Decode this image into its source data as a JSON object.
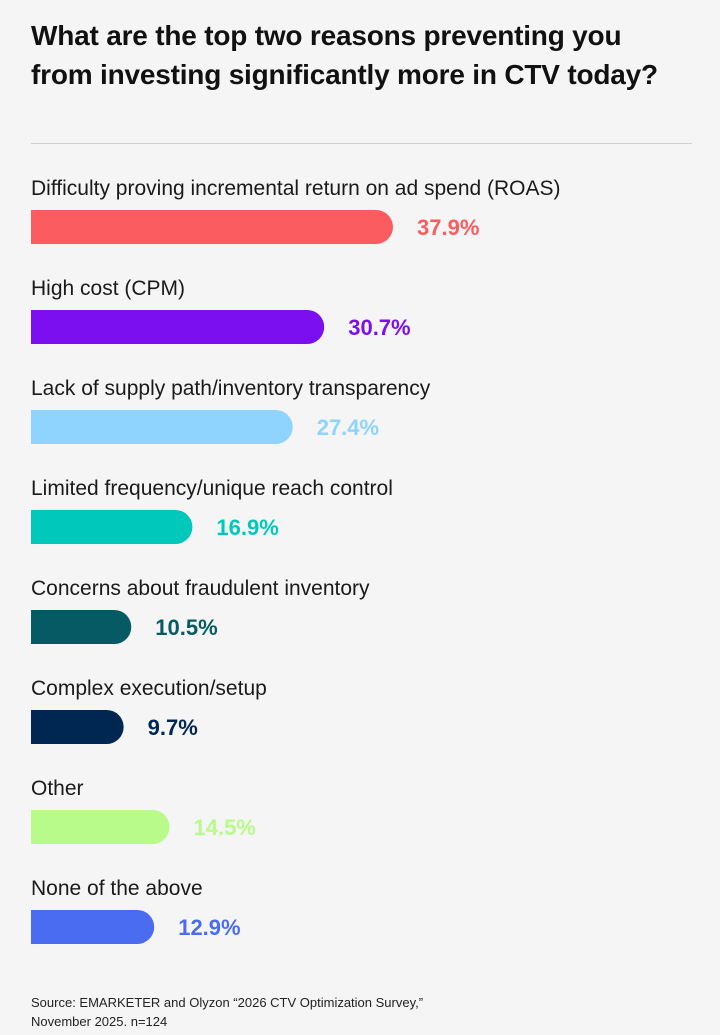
{
  "title": "What are the top two reasons preventing you from investing significantly more in CTV today?",
  "source_line1": "Source: EMARKETER and Olyzon “2026 CTV Optimization Survey,”",
  "source_line2": "November 2025. n=124",
  "chart_data": {
    "type": "bar",
    "orientation": "horizontal",
    "title": "What are the top two reasons preventing you from investing significantly more in CTV today?",
    "xlabel": "",
    "ylabel": "",
    "unit": "%",
    "categories": [
      "Difficulty proving incremental return on ad spend (ROAS)",
      "High cost (CPM)",
      "Lack of supply path/inventory transparency",
      "Limited frequency/unique reach control",
      "Concerns about fraudulent inventory",
      "Complex execution/setup",
      "Other",
      "None of the above"
    ],
    "values": [
      37.9,
      30.7,
      27.4,
      16.9,
      10.5,
      9.7,
      14.5,
      12.9
    ],
    "value_labels": [
      "37.9%",
      "30.7%",
      "27.4%",
      "16.9%",
      "10.5%",
      "9.7%",
      "14.5%",
      "12.9%"
    ],
    "colors": [
      "#fa5c5f",
      "#7b0ff0",
      "#8fd3ff",
      "#00c8bb",
      "#065a63",
      "#002752",
      "#b8fb8a",
      "#4a6cf0"
    ],
    "grid": false,
    "legend": "none"
  }
}
